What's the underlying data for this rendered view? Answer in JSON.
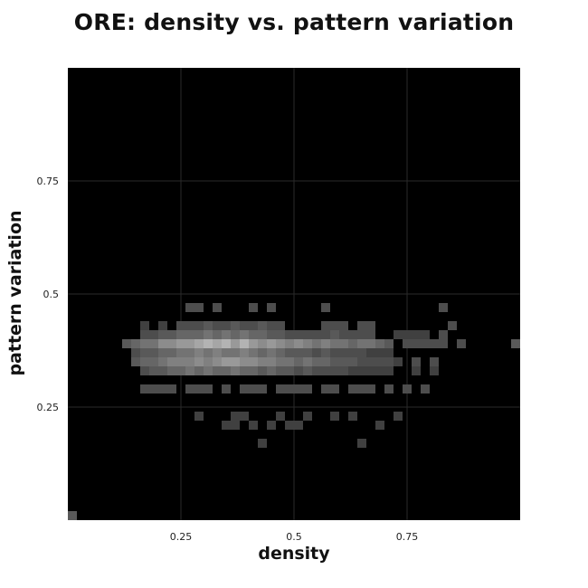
{
  "chart_data": {
    "type": "heatmap",
    "title": "ORE: density vs. pattern variation",
    "xlabel": "density",
    "ylabel": "pattern variation",
    "xlim": [
      0,
      1
    ],
    "ylim": [
      0,
      1
    ],
    "grid": true,
    "bins": 50,
    "colormap": "black-to-white",
    "x_ticks": [
      {
        "value": 0.25,
        "label": "0.25"
      },
      {
        "value": 0.5,
        "label": "0.5"
      },
      {
        "value": 0.75,
        "label": "0.75"
      }
    ],
    "y_ticks": [
      {
        "value": 0.25,
        "label": "0.25"
      },
      {
        "value": 0.5,
        "label": "0.5"
      },
      {
        "value": 0.75,
        "label": "0.75"
      }
    ],
    "cells": [
      [
        0.0,
        0.0,
        0.35
      ],
      [
        0.26,
        0.46,
        0.3
      ],
      [
        0.28,
        0.46,
        0.3
      ],
      [
        0.32,
        0.46,
        0.3
      ],
      [
        0.4,
        0.46,
        0.3
      ],
      [
        0.44,
        0.46,
        0.3
      ],
      [
        0.56,
        0.46,
        0.3
      ],
      [
        0.82,
        0.46,
        0.3
      ],
      [
        0.16,
        0.42,
        0.25
      ],
      [
        0.2,
        0.42,
        0.25
      ],
      [
        0.24,
        0.42,
        0.3
      ],
      [
        0.26,
        0.42,
        0.3
      ],
      [
        0.28,
        0.42,
        0.3
      ],
      [
        0.3,
        0.42,
        0.35
      ],
      [
        0.32,
        0.42,
        0.3
      ],
      [
        0.34,
        0.42,
        0.3
      ],
      [
        0.36,
        0.42,
        0.35
      ],
      [
        0.38,
        0.42,
        0.3
      ],
      [
        0.4,
        0.42,
        0.3
      ],
      [
        0.42,
        0.42,
        0.35
      ],
      [
        0.44,
        0.42,
        0.3
      ],
      [
        0.46,
        0.42,
        0.3
      ],
      [
        0.56,
        0.42,
        0.3
      ],
      [
        0.58,
        0.42,
        0.3
      ],
      [
        0.6,
        0.42,
        0.3
      ],
      [
        0.64,
        0.42,
        0.3
      ],
      [
        0.66,
        0.42,
        0.3
      ],
      [
        0.84,
        0.42,
        0.3
      ],
      [
        0.16,
        0.4,
        0.3
      ],
      [
        0.18,
        0.4,
        0.3
      ],
      [
        0.2,
        0.4,
        0.35
      ],
      [
        0.22,
        0.4,
        0.35
      ],
      [
        0.24,
        0.4,
        0.4
      ],
      [
        0.26,
        0.4,
        0.4
      ],
      [
        0.28,
        0.4,
        0.4
      ],
      [
        0.3,
        0.4,
        0.45
      ],
      [
        0.32,
        0.4,
        0.4
      ],
      [
        0.34,
        0.4,
        0.45
      ],
      [
        0.36,
        0.4,
        0.4
      ],
      [
        0.38,
        0.4,
        0.45
      ],
      [
        0.4,
        0.4,
        0.4
      ],
      [
        0.42,
        0.4,
        0.4
      ],
      [
        0.44,
        0.4,
        0.35
      ],
      [
        0.46,
        0.4,
        0.35
      ],
      [
        0.48,
        0.4,
        0.3
      ],
      [
        0.5,
        0.4,
        0.3
      ],
      [
        0.52,
        0.4,
        0.3
      ],
      [
        0.54,
        0.4,
        0.3
      ],
      [
        0.56,
        0.4,
        0.3
      ],
      [
        0.58,
        0.4,
        0.35
      ],
      [
        0.6,
        0.4,
        0.3
      ],
      [
        0.62,
        0.4,
        0.3
      ],
      [
        0.64,
        0.4,
        0.3
      ],
      [
        0.66,
        0.4,
        0.3
      ],
      [
        0.72,
        0.4,
        0.25
      ],
      [
        0.74,
        0.4,
        0.25
      ],
      [
        0.76,
        0.4,
        0.25
      ],
      [
        0.78,
        0.4,
        0.25
      ],
      [
        0.82,
        0.4,
        0.3
      ],
      [
        0.12,
        0.38,
        0.35
      ],
      [
        0.14,
        0.38,
        0.4
      ],
      [
        0.16,
        0.38,
        0.45
      ],
      [
        0.18,
        0.38,
        0.45
      ],
      [
        0.2,
        0.38,
        0.55
      ],
      [
        0.22,
        0.38,
        0.55
      ],
      [
        0.24,
        0.38,
        0.6
      ],
      [
        0.26,
        0.38,
        0.6
      ],
      [
        0.28,
        0.38,
        0.65
      ],
      [
        0.3,
        0.38,
        0.7
      ],
      [
        0.32,
        0.38,
        0.65
      ],
      [
        0.34,
        0.38,
        0.7
      ],
      [
        0.36,
        0.38,
        0.6
      ],
      [
        0.38,
        0.38,
        0.7
      ],
      [
        0.4,
        0.38,
        0.6
      ],
      [
        0.42,
        0.38,
        0.55
      ],
      [
        0.44,
        0.38,
        0.6
      ],
      [
        0.46,
        0.38,
        0.55
      ],
      [
        0.48,
        0.38,
        0.5
      ],
      [
        0.5,
        0.38,
        0.55
      ],
      [
        0.52,
        0.38,
        0.5
      ],
      [
        0.54,
        0.38,
        0.45
      ],
      [
        0.56,
        0.38,
        0.5
      ],
      [
        0.58,
        0.38,
        0.45
      ],
      [
        0.6,
        0.38,
        0.45
      ],
      [
        0.62,
        0.38,
        0.4
      ],
      [
        0.64,
        0.38,
        0.45
      ],
      [
        0.66,
        0.38,
        0.45
      ],
      [
        0.68,
        0.38,
        0.4
      ],
      [
        0.7,
        0.38,
        0.35
      ],
      [
        0.74,
        0.38,
        0.3
      ],
      [
        0.76,
        0.38,
        0.3
      ],
      [
        0.78,
        0.38,
        0.3
      ],
      [
        0.8,
        0.38,
        0.3
      ],
      [
        0.82,
        0.38,
        0.3
      ],
      [
        0.86,
        0.38,
        0.3
      ],
      [
        0.98,
        0.38,
        0.35
      ],
      [
        0.14,
        0.36,
        0.3
      ],
      [
        0.16,
        0.36,
        0.35
      ],
      [
        0.18,
        0.36,
        0.35
      ],
      [
        0.2,
        0.36,
        0.4
      ],
      [
        0.22,
        0.36,
        0.4
      ],
      [
        0.24,
        0.36,
        0.45
      ],
      [
        0.26,
        0.36,
        0.45
      ],
      [
        0.28,
        0.36,
        0.5
      ],
      [
        0.3,
        0.36,
        0.45
      ],
      [
        0.32,
        0.36,
        0.5
      ],
      [
        0.34,
        0.36,
        0.45
      ],
      [
        0.36,
        0.36,
        0.45
      ],
      [
        0.38,
        0.36,
        0.5
      ],
      [
        0.4,
        0.36,
        0.45
      ],
      [
        0.42,
        0.36,
        0.4
      ],
      [
        0.44,
        0.36,
        0.45
      ],
      [
        0.46,
        0.36,
        0.4
      ],
      [
        0.48,
        0.36,
        0.35
      ],
      [
        0.5,
        0.36,
        0.35
      ],
      [
        0.52,
        0.36,
        0.35
      ],
      [
        0.54,
        0.36,
        0.3
      ],
      [
        0.56,
        0.36,
        0.35
      ],
      [
        0.58,
        0.36,
        0.3
      ],
      [
        0.6,
        0.36,
        0.3
      ],
      [
        0.62,
        0.36,
        0.3
      ],
      [
        0.64,
        0.36,
        0.3
      ],
      [
        0.66,
        0.36,
        0.25
      ],
      [
        0.68,
        0.36,
        0.25
      ],
      [
        0.7,
        0.36,
        0.25
      ],
      [
        0.14,
        0.34,
        0.35
      ],
      [
        0.16,
        0.34,
        0.4
      ],
      [
        0.18,
        0.34,
        0.4
      ],
      [
        0.2,
        0.34,
        0.45
      ],
      [
        0.22,
        0.34,
        0.5
      ],
      [
        0.24,
        0.34,
        0.5
      ],
      [
        0.26,
        0.34,
        0.5
      ],
      [
        0.28,
        0.34,
        0.55
      ],
      [
        0.3,
        0.34,
        0.5
      ],
      [
        0.32,
        0.34,
        0.55
      ],
      [
        0.34,
        0.34,
        0.6
      ],
      [
        0.36,
        0.34,
        0.6
      ],
      [
        0.38,
        0.34,
        0.55
      ],
      [
        0.4,
        0.34,
        0.55
      ],
      [
        0.42,
        0.34,
        0.5
      ],
      [
        0.44,
        0.34,
        0.5
      ],
      [
        0.46,
        0.34,
        0.45
      ],
      [
        0.48,
        0.34,
        0.45
      ],
      [
        0.5,
        0.34,
        0.4
      ],
      [
        0.52,
        0.34,
        0.45
      ],
      [
        0.54,
        0.34,
        0.4
      ],
      [
        0.56,
        0.34,
        0.4
      ],
      [
        0.58,
        0.34,
        0.35
      ],
      [
        0.6,
        0.34,
        0.35
      ],
      [
        0.62,
        0.34,
        0.35
      ],
      [
        0.64,
        0.34,
        0.3
      ],
      [
        0.66,
        0.34,
        0.3
      ],
      [
        0.68,
        0.34,
        0.3
      ],
      [
        0.7,
        0.34,
        0.3
      ],
      [
        0.72,
        0.34,
        0.25
      ],
      [
        0.76,
        0.34,
        0.3
      ],
      [
        0.8,
        0.34,
        0.3
      ],
      [
        0.16,
        0.32,
        0.3
      ],
      [
        0.18,
        0.32,
        0.35
      ],
      [
        0.2,
        0.32,
        0.35
      ],
      [
        0.22,
        0.32,
        0.4
      ],
      [
        0.24,
        0.32,
        0.4
      ],
      [
        0.26,
        0.32,
        0.45
      ],
      [
        0.28,
        0.32,
        0.4
      ],
      [
        0.3,
        0.32,
        0.45
      ],
      [
        0.32,
        0.32,
        0.4
      ],
      [
        0.34,
        0.32,
        0.4
      ],
      [
        0.36,
        0.32,
        0.45
      ],
      [
        0.38,
        0.32,
        0.4
      ],
      [
        0.4,
        0.32,
        0.4
      ],
      [
        0.42,
        0.32,
        0.35
      ],
      [
        0.44,
        0.32,
        0.4
      ],
      [
        0.46,
        0.32,
        0.35
      ],
      [
        0.48,
        0.32,
        0.35
      ],
      [
        0.5,
        0.32,
        0.3
      ],
      [
        0.52,
        0.32,
        0.35
      ],
      [
        0.54,
        0.32,
        0.3
      ],
      [
        0.56,
        0.32,
        0.3
      ],
      [
        0.58,
        0.32,
        0.3
      ],
      [
        0.6,
        0.32,
        0.3
      ],
      [
        0.62,
        0.32,
        0.25
      ],
      [
        0.64,
        0.32,
        0.25
      ],
      [
        0.66,
        0.32,
        0.25
      ],
      [
        0.68,
        0.32,
        0.25
      ],
      [
        0.7,
        0.32,
        0.25
      ],
      [
        0.76,
        0.32,
        0.25
      ],
      [
        0.8,
        0.32,
        0.25
      ],
      [
        0.16,
        0.28,
        0.3
      ],
      [
        0.18,
        0.28,
        0.3
      ],
      [
        0.2,
        0.28,
        0.3
      ],
      [
        0.22,
        0.28,
        0.3
      ],
      [
        0.26,
        0.28,
        0.3
      ],
      [
        0.28,
        0.28,
        0.3
      ],
      [
        0.3,
        0.28,
        0.3
      ],
      [
        0.34,
        0.28,
        0.3
      ],
      [
        0.38,
        0.28,
        0.3
      ],
      [
        0.4,
        0.28,
        0.3
      ],
      [
        0.42,
        0.28,
        0.3
      ],
      [
        0.46,
        0.28,
        0.3
      ],
      [
        0.48,
        0.28,
        0.3
      ],
      [
        0.5,
        0.28,
        0.3
      ],
      [
        0.52,
        0.28,
        0.3
      ],
      [
        0.56,
        0.28,
        0.3
      ],
      [
        0.58,
        0.28,
        0.3
      ],
      [
        0.62,
        0.28,
        0.3
      ],
      [
        0.64,
        0.28,
        0.3
      ],
      [
        0.66,
        0.28,
        0.3
      ],
      [
        0.7,
        0.28,
        0.3
      ],
      [
        0.74,
        0.28,
        0.3
      ],
      [
        0.78,
        0.28,
        0.3
      ],
      [
        0.28,
        0.22,
        0.25
      ],
      [
        0.36,
        0.22,
        0.25
      ],
      [
        0.38,
        0.22,
        0.25
      ],
      [
        0.46,
        0.22,
        0.25
      ],
      [
        0.52,
        0.22,
        0.25
      ],
      [
        0.58,
        0.22,
        0.25
      ],
      [
        0.62,
        0.22,
        0.25
      ],
      [
        0.72,
        0.22,
        0.25
      ],
      [
        0.34,
        0.2,
        0.25
      ],
      [
        0.36,
        0.2,
        0.25
      ],
      [
        0.4,
        0.2,
        0.25
      ],
      [
        0.44,
        0.2,
        0.25
      ],
      [
        0.48,
        0.2,
        0.25
      ],
      [
        0.5,
        0.2,
        0.25
      ],
      [
        0.68,
        0.2,
        0.25
      ],
      [
        0.42,
        0.16,
        0.25
      ],
      [
        0.64,
        0.16,
        0.25
      ]
    ]
  }
}
